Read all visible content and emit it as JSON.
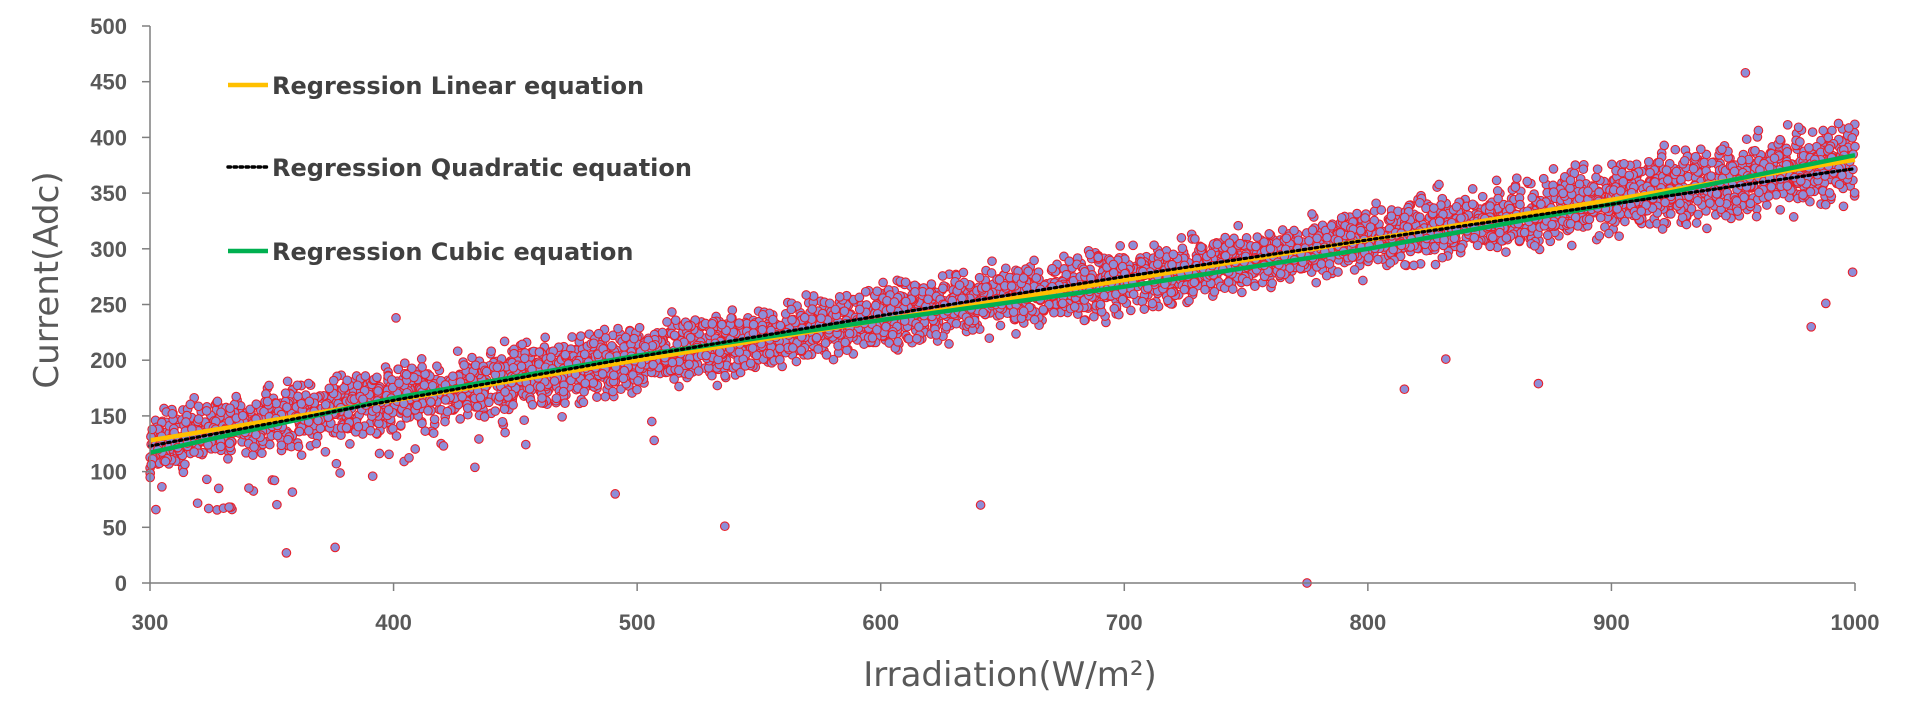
{
  "chart_data": {
    "type": "scatter",
    "title": "",
    "xlabel": "Irradiation(W/m²)",
    "ylabel": "Current(Adc)",
    "xlim": [
      300,
      1000
    ],
    "ylim": [
      0,
      500
    ],
    "x_ticks": [
      300,
      400,
      500,
      600,
      700,
      800,
      900,
      1000
    ],
    "y_ticks": [
      0,
      50,
      100,
      150,
      200,
      250,
      300,
      350,
      400,
      450,
      500
    ],
    "grid": false,
    "legend_position": "top-left",
    "colors": {
      "marker_fill": "#8E8ED8",
      "marker_edge": "#E8202A",
      "linear": "#FFC000",
      "quadratic": "#000000",
      "cubic": "#00B050",
      "axis": "#7F7F7F"
    },
    "scatter_trend": {
      "description": "dense cloud of ~8000 measured points around the trend",
      "x": [
        300,
        350,
        400,
        450,
        500,
        550,
        600,
        650,
        700,
        750,
        800,
        850,
        900,
        950,
        1000
      ],
      "center": [
        125,
        145,
        165,
        183,
        202,
        220,
        238,
        255,
        272,
        289,
        308,
        325,
        345,
        362,
        380
      ],
      "spread": [
        40,
        42,
        42,
        40,
        40,
        40,
        38,
        38,
        38,
        38,
        40,
        42,
        45,
        48,
        50
      ]
    },
    "outliers": [
      {
        "x": 356,
        "y": 27
      },
      {
        "x": 376,
        "y": 32
      },
      {
        "x": 401,
        "y": 238
      },
      {
        "x": 491,
        "y": 80
      },
      {
        "x": 506,
        "y": 145
      },
      {
        "x": 507,
        "y": 128
      },
      {
        "x": 536,
        "y": 51
      },
      {
        "x": 641,
        "y": 70
      },
      {
        "x": 775,
        "y": 0
      },
      {
        "x": 815,
        "y": 174
      },
      {
        "x": 832,
        "y": 201
      },
      {
        "x": 870,
        "y": 179
      },
      {
        "x": 955,
        "y": 458
      },
      {
        "x": 982,
        "y": 230
      },
      {
        "x": 988,
        "y": 251
      },
      {
        "x": 999,
        "y": 279
      }
    ],
    "series": [
      {
        "name": "Regression Linear equation",
        "kind": "linear",
        "x": [
          300,
          1000
        ],
        "y": [
          128,
          380
        ]
      },
      {
        "name": "Regression Quadratic equation",
        "kind": "quadratic",
        "x": [
          300,
          400,
          500,
          600,
          700,
          800,
          900,
          1000
        ],
        "y": [
          123,
          164,
          203,
          240,
          275,
          308,
          340,
          372
        ]
      },
      {
        "name": "Regression Cubic equation",
        "kind": "cubic",
        "x": [
          300,
          400,
          500,
          600,
          700,
          800,
          900,
          1000
        ],
        "y": [
          117,
          166,
          204,
          236,
          266,
          300,
          340,
          384
        ]
      }
    ]
  }
}
